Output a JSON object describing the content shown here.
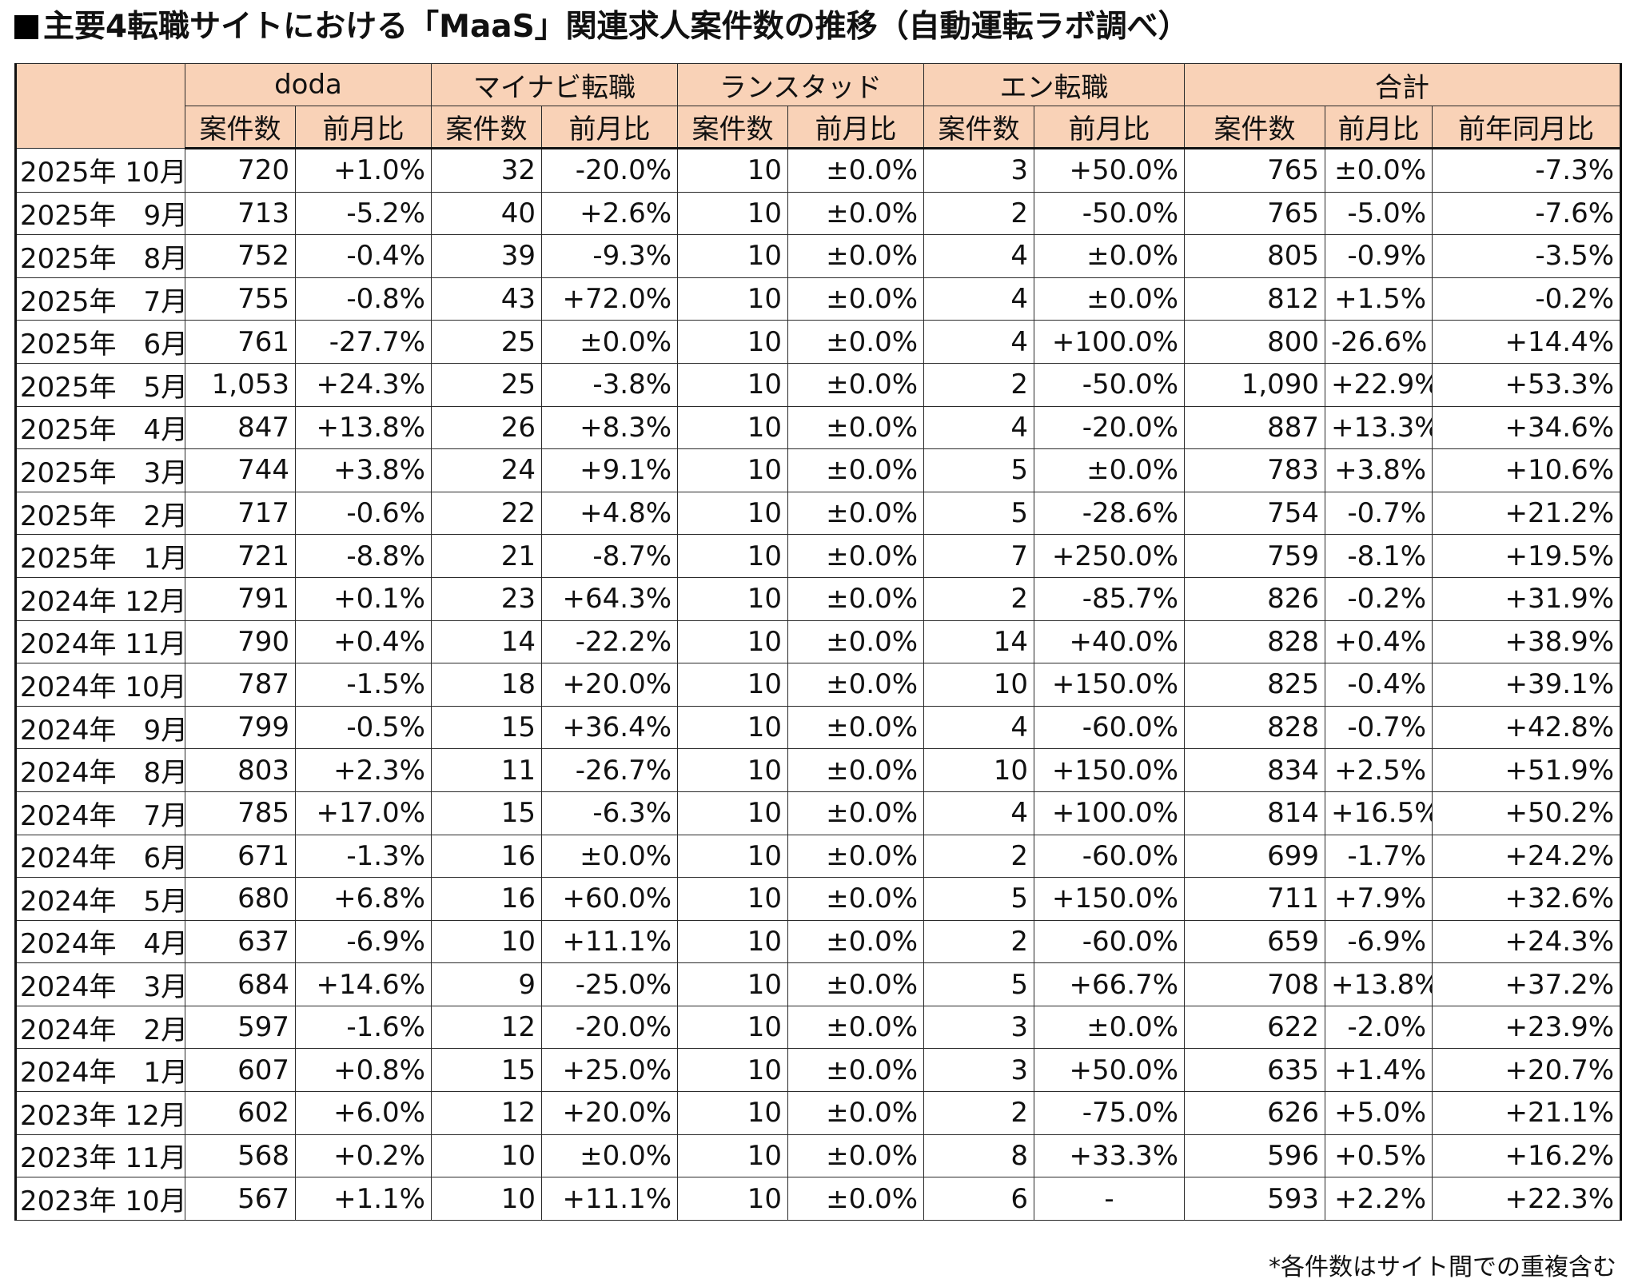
{
  "title": "■主要4転職サイトにおける「MaaS」関連求人案件数の推移（自動運転ラボ調べ）",
  "title_text": "主要4転職サイトにおける「MaaS」関連求人案件数の推移（自動運転ラボ調べ）",
  "header": {
    "groups": [
      "doda",
      "マイナビ転職",
      "ランスタッド",
      "エン転職",
      "合計"
    ],
    "sub": [
      "案件数",
      "前月比",
      "案件数",
      "前月比",
      "案件数",
      "前月比",
      "案件数",
      "前月比",
      "案件数",
      "前月比",
      "前年同月比"
    ]
  },
  "rows": [
    [
      "2025年 10月",
      "720",
      "+1.0%",
      "32",
      "-20.0%",
      "10",
      "±0.0%",
      "3",
      "+50.0%",
      "765",
      "±0.0%",
      "-7.3%"
    ],
    [
      "2025年　9月",
      "713",
      "-5.2%",
      "40",
      "+2.6%",
      "10",
      "±0.0%",
      "2",
      "-50.0%",
      "765",
      "-5.0%",
      "-7.6%"
    ],
    [
      "2025年　8月",
      "752",
      "-0.4%",
      "39",
      "-9.3%",
      "10",
      "±0.0%",
      "4",
      "±0.0%",
      "805",
      "-0.9%",
      "-3.5%"
    ],
    [
      "2025年　7月",
      "755",
      "-0.8%",
      "43",
      "+72.0%",
      "10",
      "±0.0%",
      "4",
      "±0.0%",
      "812",
      "+1.5%",
      "-0.2%"
    ],
    [
      "2025年　6月",
      "761",
      "-27.7%",
      "25",
      "±0.0%",
      "10",
      "±0.0%",
      "4",
      "+100.0%",
      "800",
      "-26.6%",
      "+14.4%"
    ],
    [
      "2025年　5月",
      "1,053",
      "+24.3%",
      "25",
      "-3.8%",
      "10",
      "±0.0%",
      "2",
      "-50.0%",
      "1,090",
      "+22.9%",
      "+53.3%"
    ],
    [
      "2025年　4月",
      "847",
      "+13.8%",
      "26",
      "+8.3%",
      "10",
      "±0.0%",
      "4",
      "-20.0%",
      "887",
      "+13.3%",
      "+34.6%"
    ],
    [
      "2025年　3月",
      "744",
      "+3.8%",
      "24",
      "+9.1%",
      "10",
      "±0.0%",
      "5",
      "±0.0%",
      "783",
      "+3.8%",
      "+10.6%"
    ],
    [
      "2025年　2月",
      "717",
      "-0.6%",
      "22",
      "+4.8%",
      "10",
      "±0.0%",
      "5",
      "-28.6%",
      "754",
      "-0.7%",
      "+21.2%"
    ],
    [
      "2025年　1月",
      "721",
      "-8.8%",
      "21",
      "-8.7%",
      "10",
      "±0.0%",
      "7",
      "+250.0%",
      "759",
      "-8.1%",
      "+19.5%"
    ],
    [
      "2024年 12月",
      "791",
      "+0.1%",
      "23",
      "+64.3%",
      "10",
      "±0.0%",
      "2",
      "-85.7%",
      "826",
      "-0.2%",
      "+31.9%"
    ],
    [
      "2024年 11月",
      "790",
      "+0.4%",
      "14",
      "-22.2%",
      "10",
      "±0.0%",
      "14",
      "+40.0%",
      "828",
      "+0.4%",
      "+38.9%"
    ],
    [
      "2024年 10月",
      "787",
      "-1.5%",
      "18",
      "+20.0%",
      "10",
      "±0.0%",
      "10",
      "+150.0%",
      "825",
      "-0.4%",
      "+39.1%"
    ],
    [
      "2024年　9月",
      "799",
      "-0.5%",
      "15",
      "+36.4%",
      "10",
      "±0.0%",
      "4",
      "-60.0%",
      "828",
      "-0.7%",
      "+42.8%"
    ],
    [
      "2024年　8月",
      "803",
      "+2.3%",
      "11",
      "-26.7%",
      "10",
      "±0.0%",
      "10",
      "+150.0%",
      "834",
      "+2.5%",
      "+51.9%"
    ],
    [
      "2024年　7月",
      "785",
      "+17.0%",
      "15",
      "-6.3%",
      "10",
      "±0.0%",
      "4",
      "+100.0%",
      "814",
      "+16.5%",
      "+50.2%"
    ],
    [
      "2024年　6月",
      "671",
      "-1.3%",
      "16",
      "±0.0%",
      "10",
      "±0.0%",
      "2",
      "-60.0%",
      "699",
      "-1.7%",
      "+24.2%"
    ],
    [
      "2024年　5月",
      "680",
      "+6.8%",
      "16",
      "+60.0%",
      "10",
      "±0.0%",
      "5",
      "+150.0%",
      "711",
      "+7.9%",
      "+32.6%"
    ],
    [
      "2024年　4月",
      "637",
      "-6.9%",
      "10",
      "+11.1%",
      "10",
      "±0.0%",
      "2",
      "-60.0%",
      "659",
      "-6.9%",
      "+24.3%"
    ],
    [
      "2024年　3月",
      "684",
      "+14.6%",
      "9",
      "-25.0%",
      "10",
      "±0.0%",
      "5",
      "+66.7%",
      "708",
      "+13.8%",
      "+37.2%"
    ],
    [
      "2024年　2月",
      "597",
      "-1.6%",
      "12",
      "-20.0%",
      "10",
      "±0.0%",
      "3",
      "±0.0%",
      "622",
      "-2.0%",
      "+23.9%"
    ],
    [
      "2024年　1月",
      "607",
      "+0.8%",
      "15",
      "+25.0%",
      "10",
      "±0.0%",
      "3",
      "+50.0%",
      "635",
      "+1.4%",
      "+20.7%"
    ],
    [
      "2023年 12月",
      "602",
      "+6.0%",
      "12",
      "+20.0%",
      "10",
      "±0.0%",
      "2",
      "-75.0%",
      "626",
      "+5.0%",
      "+21.1%"
    ],
    [
      "2023年 11月",
      "568",
      "+0.2%",
      "10",
      "±0.0%",
      "10",
      "±0.0%",
      "8",
      "+33.3%",
      "596",
      "+0.5%",
      "+16.2%"
    ],
    [
      "2023年 10月",
      "567",
      "+1.1%",
      "10",
      "+11.1%",
      "10",
      "±0.0%",
      "6",
      "-",
      "593",
      "+2.2%",
      "+22.3%"
    ]
  ],
  "footnote": "*各件数はサイト間での重複含む",
  "colors": {
    "header_bg": "#f9d2b7",
    "border": "#2a2a2a"
  }
}
